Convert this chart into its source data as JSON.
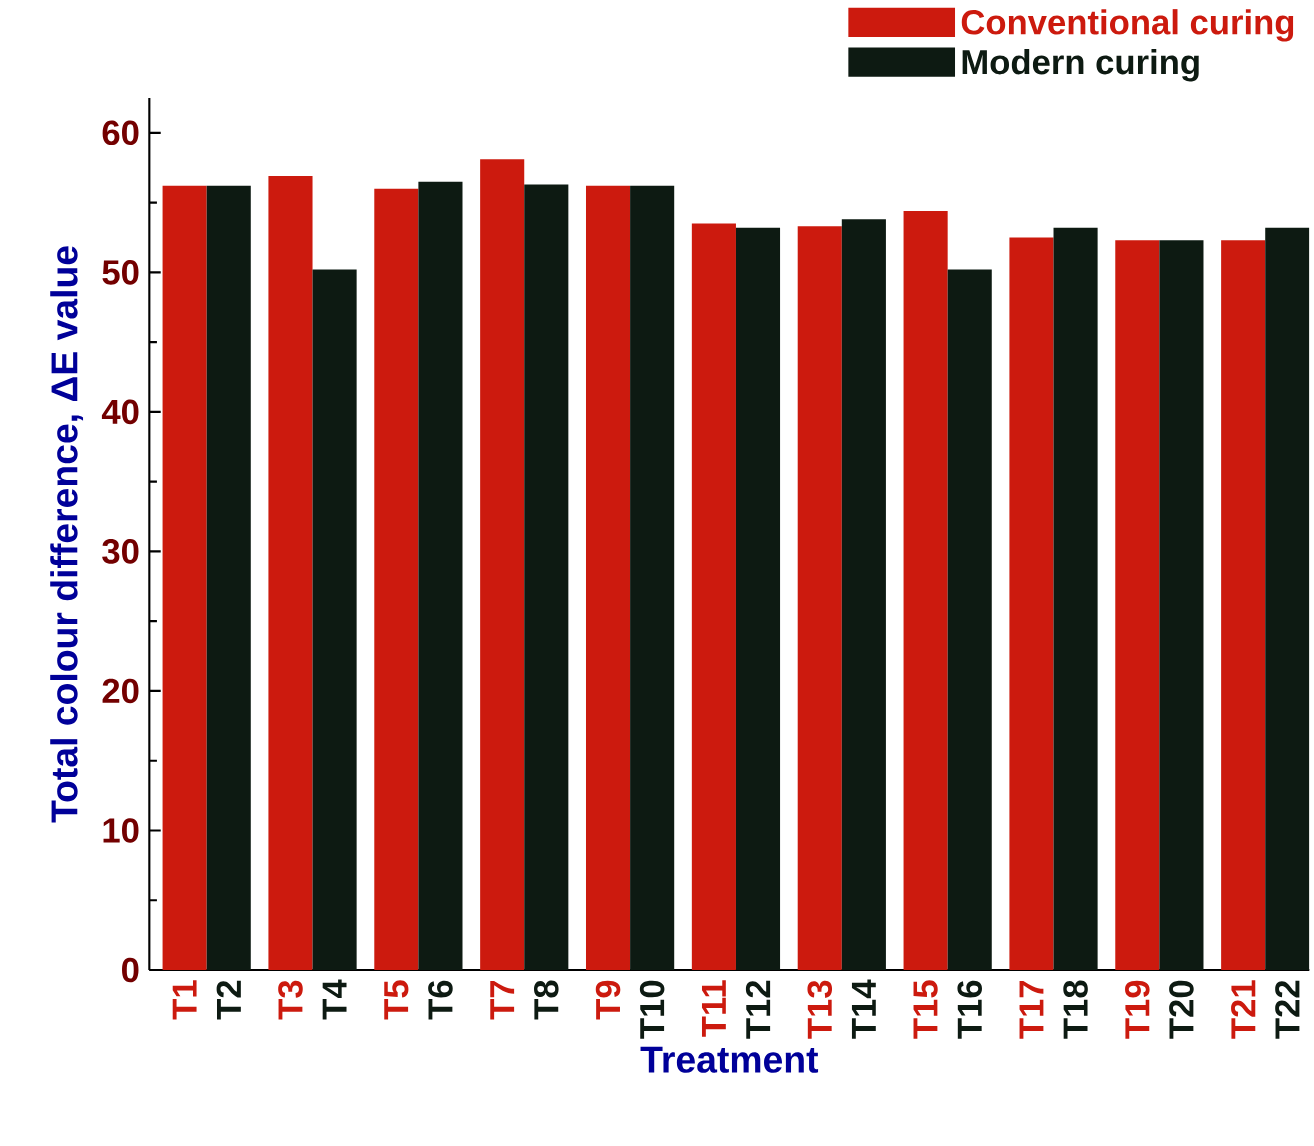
{
  "chart_data": {
    "type": "bar",
    "xlabel": "Treatment",
    "ylabel": "Total colour difference, ΔE value",
    "categories": [
      "T1",
      "T2",
      "T3",
      "T4",
      "T5",
      "T6",
      "T7",
      "T8",
      "T9",
      "T10",
      "T11",
      "T12",
      "T13",
      "T14",
      "T15",
      "T16",
      "T17",
      "T18",
      "T19",
      "T20",
      "T21",
      "T22"
    ],
    "series": [
      {
        "name": "Conventional curing",
        "color": "#cc1a0e",
        "values": [
          56.2,
          null,
          56.9,
          null,
          56.0,
          null,
          58.1,
          null,
          56.2,
          null,
          53.5,
          null,
          53.3,
          null,
          54.4,
          null,
          52.5,
          null,
          52.3,
          null,
          52.3,
          null
        ]
      },
      {
        "name": "Modern curing",
        "color": "#0d1a12",
        "values": [
          null,
          56.2,
          null,
          50.2,
          null,
          56.5,
          null,
          56.3,
          null,
          56.2,
          null,
          53.2,
          null,
          53.8,
          null,
          50.2,
          null,
          53.2,
          null,
          52.3,
          null,
          53.2
        ]
      }
    ],
    "ylim": [
      0,
      62.5
    ],
    "yticks": [
      0,
      10,
      20,
      30,
      40,
      50,
      60
    ],
    "legend": "top right",
    "grid": false
  }
}
